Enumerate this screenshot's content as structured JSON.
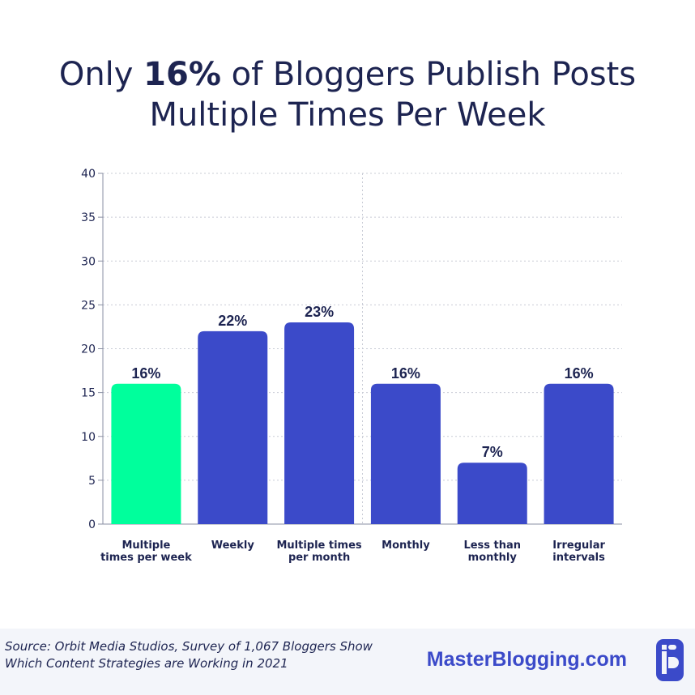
{
  "title": {
    "prefix": "Only ",
    "highlight": "16%",
    "suffix": " of Bloggers Publish Posts",
    "line2": "Multiple Times Per Week"
  },
  "chart_data": {
    "type": "bar",
    "categories": [
      [
        "Multiple",
        "times per week"
      ],
      [
        "Weekly"
      ],
      [
        "Multiple times",
        "per month"
      ],
      [
        "Monthly"
      ],
      [
        "Less than",
        "monthly"
      ],
      [
        "Irregular",
        "intervals"
      ]
    ],
    "values": [
      16,
      22,
      23,
      16,
      7,
      16
    ],
    "data_labels": [
      "16%",
      "22%",
      "23%",
      "16%",
      "7%",
      "16%"
    ],
    "highlight_index": 0,
    "ylim": [
      0,
      40
    ],
    "yticks": [
      0,
      5,
      10,
      15,
      20,
      25,
      30,
      35,
      40
    ],
    "grid": true,
    "colors": {
      "highlight": "#00ff9c",
      "bar": "#3b4ac9",
      "text": "#1d2451",
      "grid": "#c9ccd6"
    }
  },
  "footer": {
    "source_line1": "Source: Orbit Media Studios, Survey of 1,067 Bloggers Show",
    "source_line2": "Which Content Strategies are Working in 2021",
    "brand": "MasterBlogging.com",
    "background": "#f3f5fa"
  }
}
